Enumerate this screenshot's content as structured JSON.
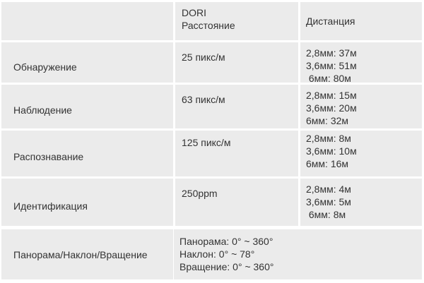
{
  "header": {
    "col1": "",
    "col2_line1": "DORI",
    "col2_line2": "Расстояние",
    "col3": "Дистанция"
  },
  "rows": [
    {
      "label": "Обнаружение",
      "density": "25 пикс/м",
      "distances": [
        "2,8мм: 37м",
        "3,6мм: 51м",
        " 6мм: 80м"
      ]
    },
    {
      "label": "Наблюдение",
      "density": "63 пикс/м",
      "distances": [
        "2,8мм: 15м",
        "3,6мм: 20м",
        "6мм: 32м"
      ]
    },
    {
      "label": "Распознавание",
      "density": "125 пикс/м",
      "distances": [
        "2,8мм: 8м",
        "3,6мм: 10м",
        "6мм: 16м"
      ]
    },
    {
      "label": "Идентификация",
      "density": "250ppm",
      "distances": [
        "2,8мм: 4м",
        "3,6мм: 5м",
        " 6мм: 8м"
      ]
    }
  ],
  "ptz": {
    "label": "Панорама/Наклон/Вращение",
    "values": [
      "Панорама: 0° ~ 360°",
      "Наклон: 0° ~ 78°",
      "Вращение: 0° ~ 360°"
    ]
  }
}
